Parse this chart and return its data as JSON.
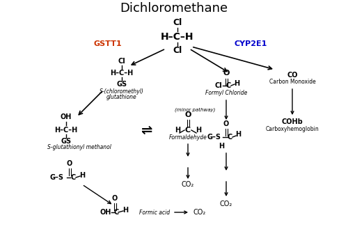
{
  "title": "Dichloromethane",
  "title_fontsize": 13,
  "background_color": "#ffffff",
  "figsize": [
    5.0,
    3.62
  ],
  "dpi": 100,
  "gstt1_label": "GSTT1",
  "cyp2e1_label": "CYP2E1",
  "gstt1_color": "#cc3300",
  "cyp2e1_color": "#0000cc",
  "fs_base": 7.0,
  "fs_small": 5.5,
  "fs_label": 6.0
}
